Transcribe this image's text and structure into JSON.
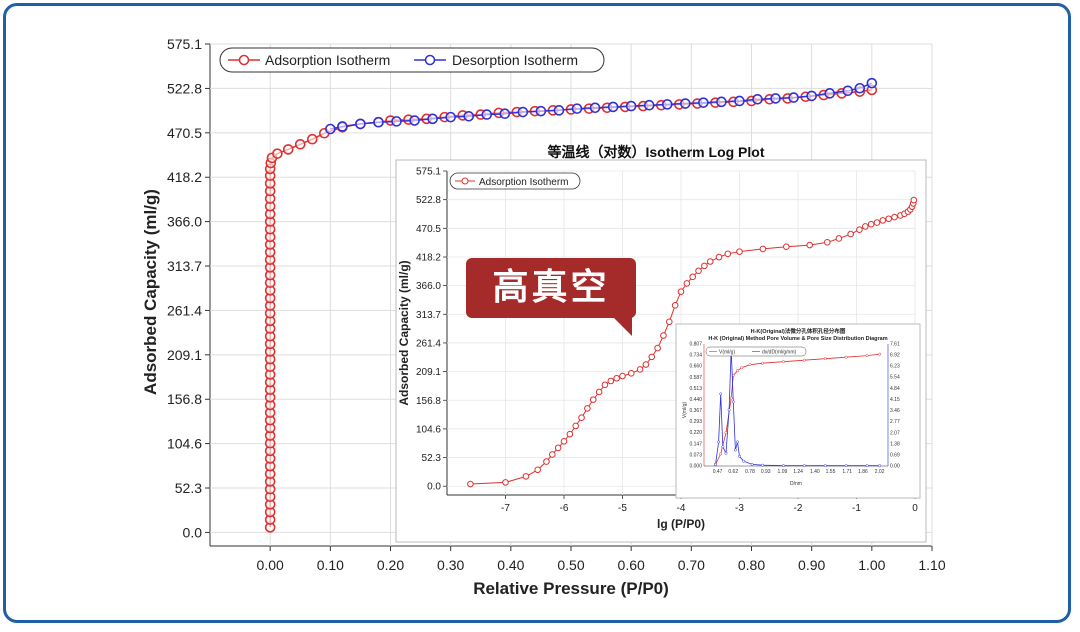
{
  "callout": {
    "text": "高真空",
    "color": "#a52a2a"
  },
  "frame": {
    "border_color": "#1f5fa8"
  },
  "chart_data": [
    {
      "type": "line",
      "title": "",
      "xlabel": "Relative Pressure (P/P0)",
      "ylabel": "Adsorbed Capacity (ml/g)",
      "xlim": [
        -0.1,
        1.1
      ],
      "ylim": [
        -16,
        575.1
      ],
      "x_ticks": [
        "0.00",
        "0.10",
        "0.20",
        "0.30",
        "0.40",
        "0.50",
        "0.60",
        "0.70",
        "0.80",
        "0.90",
        "1.00",
        "1.10"
      ],
      "y_ticks": [
        "0.0",
        "52.3",
        "104.6",
        "156.8",
        "209.1",
        "261.4",
        "313.7",
        "366.0",
        "418.2",
        "470.5",
        "522.8",
        "575.1"
      ],
      "legend_position": "top-left",
      "series": [
        {
          "name": "Adsorption Isotherm",
          "color": "#e03030",
          "points": [
            [
              0.0,
              6
            ],
            [
              0.0,
              15
            ],
            [
              0.0,
              24
            ],
            [
              0.0,
              33
            ],
            [
              0.0,
              42
            ],
            [
              0.0,
              51
            ],
            [
              0.0,
              60
            ],
            [
              0.0,
              69
            ],
            [
              0.0,
              78
            ],
            [
              0.0,
              87
            ],
            [
              0.0,
              96
            ],
            [
              0.0,
              105
            ],
            [
              0.0,
              114
            ],
            [
              0.0,
              123
            ],
            [
              0.0,
              132
            ],
            [
              0.0,
              141
            ],
            [
              0.0,
              150
            ],
            [
              0.0,
              159
            ],
            [
              0.0,
              168
            ],
            [
              0.0,
              177
            ],
            [
              0.0,
              186
            ],
            [
              0.0,
              195
            ],
            [
              0.0,
              204
            ],
            [
              0.0,
              213
            ],
            [
              0.0,
              222
            ],
            [
              0.0,
              231
            ],
            [
              0.0,
              240
            ],
            [
              0.0,
              249
            ],
            [
              0.0,
              258
            ],
            [
              0.0,
              267
            ],
            [
              0.0,
              276
            ],
            [
              0.0,
              285
            ],
            [
              0.0,
              294
            ],
            [
              0.0,
              303
            ],
            [
              0.0,
              312
            ],
            [
              0.0,
              321
            ],
            [
              0.0,
              330
            ],
            [
              0.0,
              339
            ],
            [
              0.0,
              348
            ],
            [
              0.0,
              357
            ],
            [
              0.0,
              366
            ],
            [
              0.0,
              375
            ],
            [
              0.0,
              384
            ],
            [
              0.0,
              393
            ],
            [
              0.0,
              402
            ],
            [
              0.0,
              411
            ],
            [
              0.0,
              420
            ],
            [
              0.0,
              428
            ],
            [
              0.001,
              435
            ],
            [
              0.003,
              441
            ],
            [
              0.012,
              446
            ],
            [
              0.03,
              451
            ],
            [
              0.05,
              457
            ],
            [
              0.07,
              463
            ],
            [
              0.09,
              470
            ],
            [
              0.12,
              477
            ],
            [
              0.15,
              481
            ],
            [
              0.18,
              483
            ],
            [
              0.2,
              485
            ],
            [
              0.23,
              486
            ],
            [
              0.26,
              487
            ],
            [
              0.29,
              489
            ],
            [
              0.32,
              491
            ],
            [
              0.35,
              492
            ],
            [
              0.38,
              494
            ],
            [
              0.41,
              495
            ],
            [
              0.44,
              496
            ],
            [
              0.47,
              497
            ],
            [
              0.5,
              498
            ],
            [
              0.53,
              499
            ],
            [
              0.56,
              500
            ],
            [
              0.59,
              501
            ],
            [
              0.62,
              502
            ],
            [
              0.65,
              503
            ],
            [
              0.68,
              504
            ],
            [
              0.71,
              505
            ],
            [
              0.74,
              506
            ],
            [
              0.77,
              507
            ],
            [
              0.8,
              508
            ],
            [
              0.83,
              510
            ],
            [
              0.86,
              511
            ],
            [
              0.89,
              513
            ],
            [
              0.92,
              515
            ],
            [
              0.95,
              517
            ],
            [
              0.98,
              519
            ],
            [
              1.0,
              521
            ]
          ]
        },
        {
          "name": "Desorption Isotherm",
          "color": "#3030d8",
          "points": [
            [
              1.0,
              529
            ],
            [
              0.98,
              523
            ],
            [
              0.96,
              520
            ],
            [
              0.93,
              517
            ],
            [
              0.9,
              514
            ],
            [
              0.87,
              512
            ],
            [
              0.84,
              511
            ],
            [
              0.81,
              510
            ],
            [
              0.78,
              508
            ],
            [
              0.75,
              507
            ],
            [
              0.72,
              506
            ],
            [
              0.69,
              505
            ],
            [
              0.66,
              504
            ],
            [
              0.63,
              503
            ],
            [
              0.6,
              502
            ],
            [
              0.57,
              501
            ],
            [
              0.54,
              500
            ],
            [
              0.51,
              499
            ],
            [
              0.48,
              497
            ],
            [
              0.45,
              496
            ],
            [
              0.42,
              495
            ],
            [
              0.39,
              493
            ],
            [
              0.36,
              492
            ],
            [
              0.33,
              490
            ],
            [
              0.3,
              489
            ],
            [
              0.27,
              487
            ],
            [
              0.24,
              485
            ],
            [
              0.21,
              484
            ],
            [
              0.18,
              483
            ],
            [
              0.15,
              481
            ],
            [
              0.12,
              478
            ],
            [
              0.1,
              475
            ]
          ]
        }
      ]
    },
    {
      "type": "line",
      "title": "等温线（对数）Isotherm Log Plot",
      "xlabel": "lg (P/P0)",
      "ylabel": "Adsorbed Capacity (ml/g)",
      "xlim": [
        -8,
        0
      ],
      "ylim": [
        -16,
        575.1
      ],
      "x_ticks": [
        "-7",
        "-6",
        "-5",
        "-4",
        "-3",
        "-2",
        "-1",
        "0"
      ],
      "y_ticks": [
        "0.0",
        "52.3",
        "104.6",
        "156.8",
        "209.1",
        "261.4",
        "313.7",
        "366.0",
        "418.2",
        "470.5",
        "522.8",
        "575.1"
      ],
      "legend_position": "top-left",
      "series": [
        {
          "name": "Adsorption Isotherm",
          "color": "#e03030",
          "points": [
            [
              -7.6,
              4
            ],
            [
              -7.0,
              7
            ],
            [
              -6.65,
              18
            ],
            [
              -6.45,
              30
            ],
            [
              -6.3,
              45
            ],
            [
              -6.2,
              58
            ],
            [
              -6.1,
              70
            ],
            [
              -6.0,
              82
            ],
            [
              -5.9,
              95
            ],
            [
              -5.8,
              110
            ],
            [
              -5.7,
              125
            ],
            [
              -5.6,
              142
            ],
            [
              -5.5,
              158
            ],
            [
              -5.4,
              172
            ],
            [
              -5.3,
              185
            ],
            [
              -5.2,
              192
            ],
            [
              -5.1,
              197
            ],
            [
              -5.0,
              201
            ],
            [
              -4.85,
              206
            ],
            [
              -4.7,
              213
            ],
            [
              -4.6,
              222
            ],
            [
              -4.5,
              236
            ],
            [
              -4.4,
              252
            ],
            [
              -4.3,
              275
            ],
            [
              -4.2,
              300
            ],
            [
              -4.1,
              330
            ],
            [
              -4.0,
              355
            ],
            [
              -3.9,
              370
            ],
            [
              -3.8,
              382
            ],
            [
              -3.7,
              393
            ],
            [
              -3.6,
              402
            ],
            [
              -3.5,
              410
            ],
            [
              -3.35,
              418
            ],
            [
              -3.2,
              424
            ],
            [
              -3.0,
              428
            ],
            [
              -2.6,
              433
            ],
            [
              -2.2,
              437
            ],
            [
              -1.8,
              440
            ],
            [
              -1.5,
              445
            ],
            [
              -1.3,
              452
            ],
            [
              -1.1,
              460
            ],
            [
              -0.95,
              468
            ],
            [
              -0.85,
              474
            ],
            [
              -0.75,
              478
            ],
            [
              -0.65,
              481
            ],
            [
              -0.55,
              485
            ],
            [
              -0.45,
              488
            ],
            [
              -0.35,
              491
            ],
            [
              -0.25,
              494
            ],
            [
              -0.18,
              497
            ],
            [
              -0.12,
              501
            ],
            [
              -0.08,
              505
            ],
            [
              -0.05,
              510
            ],
            [
              -0.03,
              516
            ],
            [
              -0.02,
              522
            ]
          ]
        }
      ]
    },
    {
      "type": "line",
      "title": "H-K(Original)法微分孔体积孔径分布图",
      "subtitle": "H-K (Original) Method Pore Volume & Pore Size Distribution Diagram",
      "xlabel": "D/nm",
      "ylabel": "V(ml/g)",
      "xlim": [
        0.34,
        2.1
      ],
      "ylim": [
        0.0,
        0.807
      ],
      "y_ticks": [
        "0.000",
        "0.073",
        "0.147",
        "0.220",
        "0.293",
        "0.367",
        "0.440",
        "0.513",
        "0.587",
        "0.660",
        "0.734",
        "0.807"
      ],
      "y2_ticks": [
        "0.00",
        "0.69",
        "1.38",
        "2.07",
        "2.77",
        "3.46",
        "4.15",
        "4.84",
        "5.54",
        "6.23",
        "6.92",
        "7.61"
      ],
      "x_ticks": [
        "0.47",
        "0.62",
        "0.78",
        "0.93",
        "1.09",
        "1.24",
        "1.40",
        "1.55",
        "1.71",
        "1.86",
        "2.02"
      ],
      "series": [
        {
          "name": "V(ml/g)",
          "color": "#e03030",
          "points": [
            [
              0.45,
              0.01
            ],
            [
              0.5,
              0.08
            ],
            [
              0.55,
              0.22
            ],
            [
              0.6,
              0.45
            ],
            [
              0.62,
              0.6
            ],
            [
              0.66,
              0.63
            ],
            [
              0.7,
              0.65
            ],
            [
              0.78,
              0.67
            ],
            [
              0.9,
              0.68
            ],
            [
              1.1,
              0.69
            ],
            [
              1.3,
              0.7
            ],
            [
              1.5,
              0.71
            ],
            [
              1.7,
              0.72
            ],
            [
              1.9,
              0.73
            ],
            [
              2.02,
              0.74
            ]
          ]
        },
        {
          "name": "dv/dD(ml/g/nm)",
          "color": "#3030d8",
          "points": [
            [
              0.45,
              0.1
            ],
            [
              0.48,
              1.5
            ],
            [
              0.5,
              4.5
            ],
            [
              0.52,
              1.2
            ],
            [
              0.55,
              0.8
            ],
            [
              0.58,
              3.5
            ],
            [
              0.6,
              7.3
            ],
            [
              0.62,
              4.0
            ],
            [
              0.64,
              1.0
            ],
            [
              0.66,
              1.5
            ],
            [
              0.68,
              0.6
            ],
            [
              0.72,
              0.3
            ],
            [
              0.8,
              0.1
            ],
            [
              0.9,
              0.05
            ],
            [
              1.1,
              0.02
            ],
            [
              1.3,
              0.02
            ],
            [
              1.5,
              0.02
            ],
            [
              1.7,
              0.02
            ],
            [
              1.9,
              0.02
            ],
            [
              2.02,
              0.02
            ]
          ]
        }
      ]
    }
  ]
}
